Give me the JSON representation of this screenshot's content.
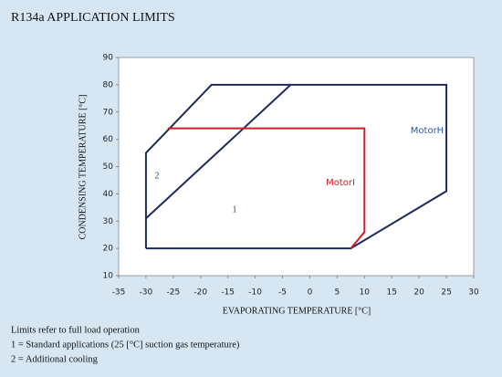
{
  "chart_data": {
    "type": "line",
    "title": "R134a APPLICATION LIMITS",
    "x_label": "EVAPORATING TEMPERATURE  [°C]",
    "y_label": "CONDENSING TEMPERATURE  [°C]",
    "xlim": [
      -35,
      30
    ],
    "xticks": [
      -35,
      -30,
      -25,
      -20,
      -15,
      -10,
      -5,
      0,
      5,
      10,
      15,
      20,
      25,
      30
    ],
    "ylim": [
      10,
      90
    ],
    "yticks": [
      10,
      20,
      30,
      40,
      50,
      60,
      70,
      80,
      90
    ],
    "grid": false,
    "series": [
      {
        "name": "MotorH",
        "color": "#1f2a5e",
        "x": [
          -30,
          -30,
          -18,
          25,
          25,
          7.5,
          -30
        ],
        "values": [
          20,
          55,
          80,
          80,
          41,
          20,
          20
        ]
      },
      {
        "color": "#1f2a5e",
        "x": [
          -30,
          -3.5
        ],
        "values": [
          31,
          80
        ]
      },
      {
        "name": "MotorI",
        "color": "#c8202a",
        "x": [
          -26,
          10,
          10,
          7.5
        ],
        "values": [
          64,
          64,
          26,
          20
        ]
      }
    ],
    "annotations": [
      "1",
      "2"
    ]
  },
  "notes": [
    "Limits refer to full load operation",
    "1 = Standard applications (25 [°C] suction gas temperature)",
    "2 = Additional cooling"
  ]
}
